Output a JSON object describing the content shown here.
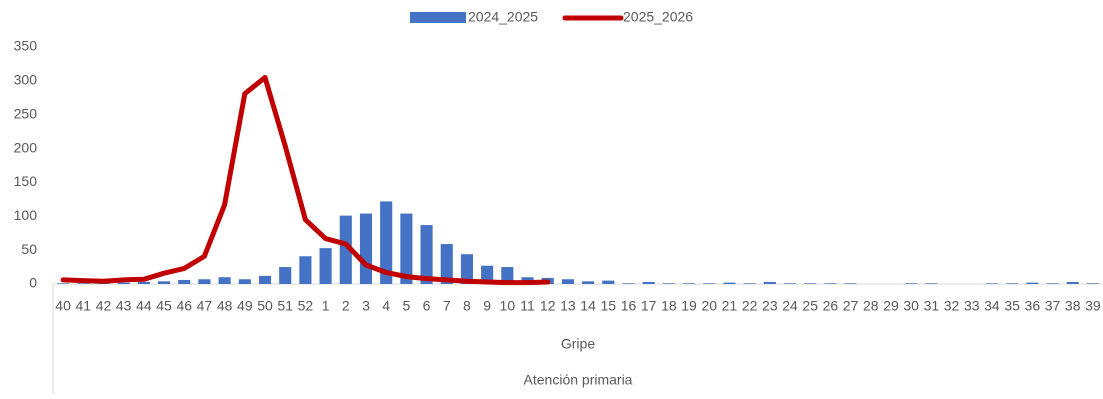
{
  "chart_data": {
    "type": "bar_line",
    "categories": [
      "40",
      "41",
      "42",
      "43",
      "44",
      "45",
      "46",
      "47",
      "48",
      "49",
      "50",
      "51",
      "52",
      "1",
      "2",
      "3",
      "4",
      "5",
      "6",
      "7",
      "8",
      "9",
      "10",
      "11",
      "12",
      "13",
      "14",
      "15",
      "16",
      "17",
      "18",
      "19",
      "20",
      "21",
      "22",
      "23",
      "24",
      "25",
      "26",
      "27",
      "28",
      "29",
      "30",
      "31",
      "32",
      "33",
      "34",
      "35",
      "36",
      "37",
      "38",
      "39"
    ],
    "series": [
      {
        "name": "2024_2025",
        "type": "bar",
        "color": "#4472c4",
        "values": [
          1,
          1,
          1,
          2,
          3,
          4,
          6,
          7,
          10,
          7,
          12,
          25,
          41,
          53,
          101,
          104,
          122,
          104,
          87,
          59,
          44,
          27,
          25,
          10,
          9,
          7,
          4,
          5,
          1,
          3,
          1,
          1,
          1,
          2,
          1,
          3,
          1,
          1,
          1,
          1,
          0,
          0,
          1,
          1,
          0,
          0,
          1,
          1,
          2,
          1,
          3,
          1
        ]
      },
      {
        "name": "2025_2026",
        "type": "line",
        "color": "#c00000",
        "values": [
          6,
          5,
          4,
          6,
          7,
          16,
          23,
          41,
          117,
          281,
          305,
          204,
          95,
          67,
          59,
          28,
          17,
          11,
          8,
          6,
          4,
          3,
          2,
          2,
          3,
          null,
          null,
          null,
          null,
          null,
          null,
          null,
          null,
          null,
          null,
          null,
          null,
          null,
          null,
          null,
          null,
          null,
          null,
          null,
          null,
          null,
          null,
          null,
          null,
          null,
          null,
          null
        ]
      }
    ],
    "x_label": "Gripe",
    "x_group_label": "Atención primaria",
    "ylim": [
      0,
      350
    ],
    "yticks": [
      0,
      50,
      100,
      150,
      200,
      250,
      300,
      350
    ],
    "grid": false,
    "legend": "top"
  }
}
